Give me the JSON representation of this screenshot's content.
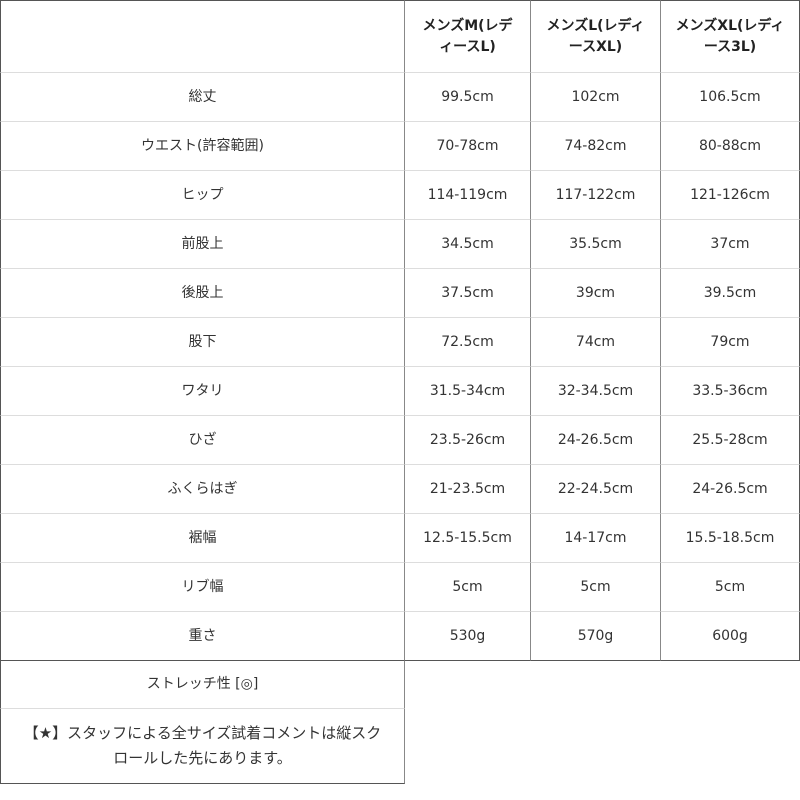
{
  "table": {
    "headers": [
      "",
      "メンズM(レディースL)",
      "メンズL(レディースXL)",
      "メンズXL(レディース3L)"
    ],
    "rows": [
      {
        "label": "総丈",
        "values": [
          "99.5cm",
          "102cm",
          "106.5cm"
        ]
      },
      {
        "label": "ウエスト(許容範囲)",
        "values": [
          "70-78cm",
          "74-82cm",
          "80-88cm"
        ]
      },
      {
        "label": "ヒップ",
        "values": [
          "114-119cm",
          "117-122cm",
          "121-126cm"
        ]
      },
      {
        "label": "前股上",
        "values": [
          "34.5cm",
          "35.5cm",
          "37cm"
        ]
      },
      {
        "label": "後股上",
        "values": [
          "37.5cm",
          "39cm",
          "39.5cm"
        ]
      },
      {
        "label": "股下",
        "values": [
          "72.5cm",
          "74cm",
          "79cm"
        ]
      },
      {
        "label": "ワタリ",
        "values": [
          "31.5-34cm",
          "32-34.5cm",
          "33.5-36cm"
        ]
      },
      {
        "label": "ひざ",
        "values": [
          "23.5-26cm",
          "24-26.5cm",
          "25.5-28cm"
        ]
      },
      {
        "label": "ふくらはぎ",
        "values": [
          "21-23.5cm",
          "22-24.5cm",
          "24-26.5cm"
        ]
      },
      {
        "label": "裾幅",
        "values": [
          "12.5-15.5cm",
          "14-17cm",
          "15.5-18.5cm"
        ]
      },
      {
        "label": "リブ幅",
        "values": [
          "5cm",
          "5cm",
          "5cm"
        ]
      },
      {
        "label": "重さ",
        "values": [
          "530g",
          "570g",
          "600g"
        ]
      }
    ],
    "stretch": "ストレッチ性 [◎]",
    "comment": "【★】スタッフによる全サイズ試着コメントは縦スクロールした先にあります。"
  }
}
